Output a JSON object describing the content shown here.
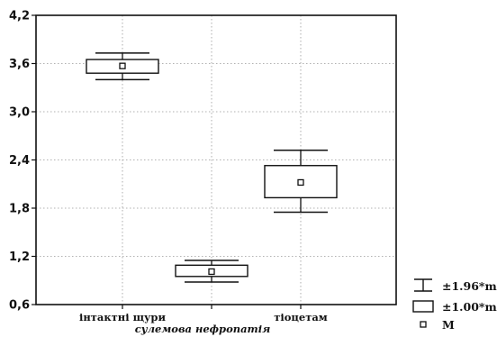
{
  "chart_data": {
    "type": "box",
    "categories": [
      "інтактні щури",
      "сулемова нефропатія",
      "тіоцетам"
    ],
    "series": [
      {
        "category": "інтактні щури",
        "mean": 3.57,
        "box": [
          3.48,
          3.65
        ],
        "whisker": [
          3.4,
          3.73
        ]
      },
      {
        "category": "сулемова нефропатія",
        "mean": 1.01,
        "box": [
          0.95,
          1.09
        ],
        "whisker": [
          0.88,
          1.15
        ]
      },
      {
        "category": "тіоцетам",
        "mean": 2.12,
        "box": [
          1.93,
          2.33
        ],
        "whisker": [
          1.75,
          2.52
        ]
      }
    ],
    "ylim": [
      0.6,
      4.2
    ],
    "yticks": [
      "0,6",
      "1,2",
      "1,8",
      "2,4",
      "3,0",
      "3,6",
      "4,2"
    ],
    "grid": true,
    "legend": {
      "position": "bottom-right",
      "items": [
        {
          "symbol": "whisker",
          "label": "±1.96*m"
        },
        {
          "symbol": "box",
          "label": "±1.00*m"
        },
        {
          "symbol": "marker",
          "label": "M"
        }
      ]
    }
  }
}
